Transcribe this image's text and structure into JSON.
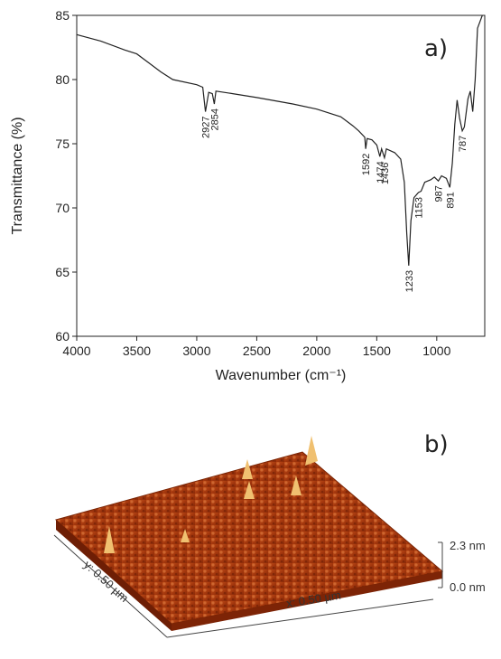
{
  "chart_data": {
    "type": "line",
    "panel_label": "a)",
    "x_label": "Wavenumber (cm⁻¹)",
    "y_label": "Transmittance (%)",
    "xlim": [
      4000,
      600
    ],
    "ylim": [
      60,
      85
    ],
    "xticks": [
      4000,
      3500,
      3000,
      2500,
      2000,
      1500,
      1000
    ],
    "yticks": [
      60,
      65,
      70,
      75,
      80,
      85
    ],
    "x": [
      4000,
      3800,
      3600,
      3500,
      3400,
      3300,
      3200,
      3000,
      2950,
      2927,
      2900,
      2870,
      2854,
      2840,
      2700,
      2500,
      2200,
      2000,
      1800,
      1700,
      1650,
      1600,
      1592,
      1580,
      1540,
      1500,
      1474,
      1460,
      1436,
      1420,
      1350,
      1300,
      1270,
      1250,
      1233,
      1215,
      1190,
      1153,
      1130,
      1100,
      1050,
      1020,
      987,
      960,
      920,
      891,
      870,
      850,
      830,
      810,
      787,
      770,
      740,
      720,
      700,
      680,
      660,
      620
    ],
    "series": [
      {
        "color": "#222222",
        "values": [
          83.5,
          83.0,
          82.3,
          82.0,
          81.3,
          80.6,
          80.0,
          79.6,
          79.4,
          77.5,
          79.0,
          78.9,
          78.1,
          79.1,
          78.9,
          78.6,
          78.1,
          77.7,
          77.1,
          76.4,
          76.0,
          75.5,
          74.6,
          75.4,
          75.3,
          74.9,
          74.0,
          74.6,
          73.9,
          74.6,
          74.3,
          73.8,
          72.0,
          68.0,
          65.5,
          69.0,
          70.8,
          71.2,
          71.3,
          72.0,
          72.2,
          72.4,
          72.1,
          72.5,
          72.3,
          71.6,
          73.5,
          76.5,
          78.4,
          77.0,
          76.0,
          76.3,
          78.5,
          79.1,
          77.5,
          80.0,
          84.0,
          85.0
        ]
      }
    ],
    "peak_labels": [
      2927,
      2854,
      1592,
      1474,
      1436,
      1233,
      1153,
      987,
      891,
      787
    ]
  },
  "afm_image": {
    "panel_label": "b)",
    "z_max": "2.3 nm",
    "z_min": "0.0 nm",
    "y_size": "y: 0.50 µm",
    "x_size": "x: 0.50 µm"
  }
}
